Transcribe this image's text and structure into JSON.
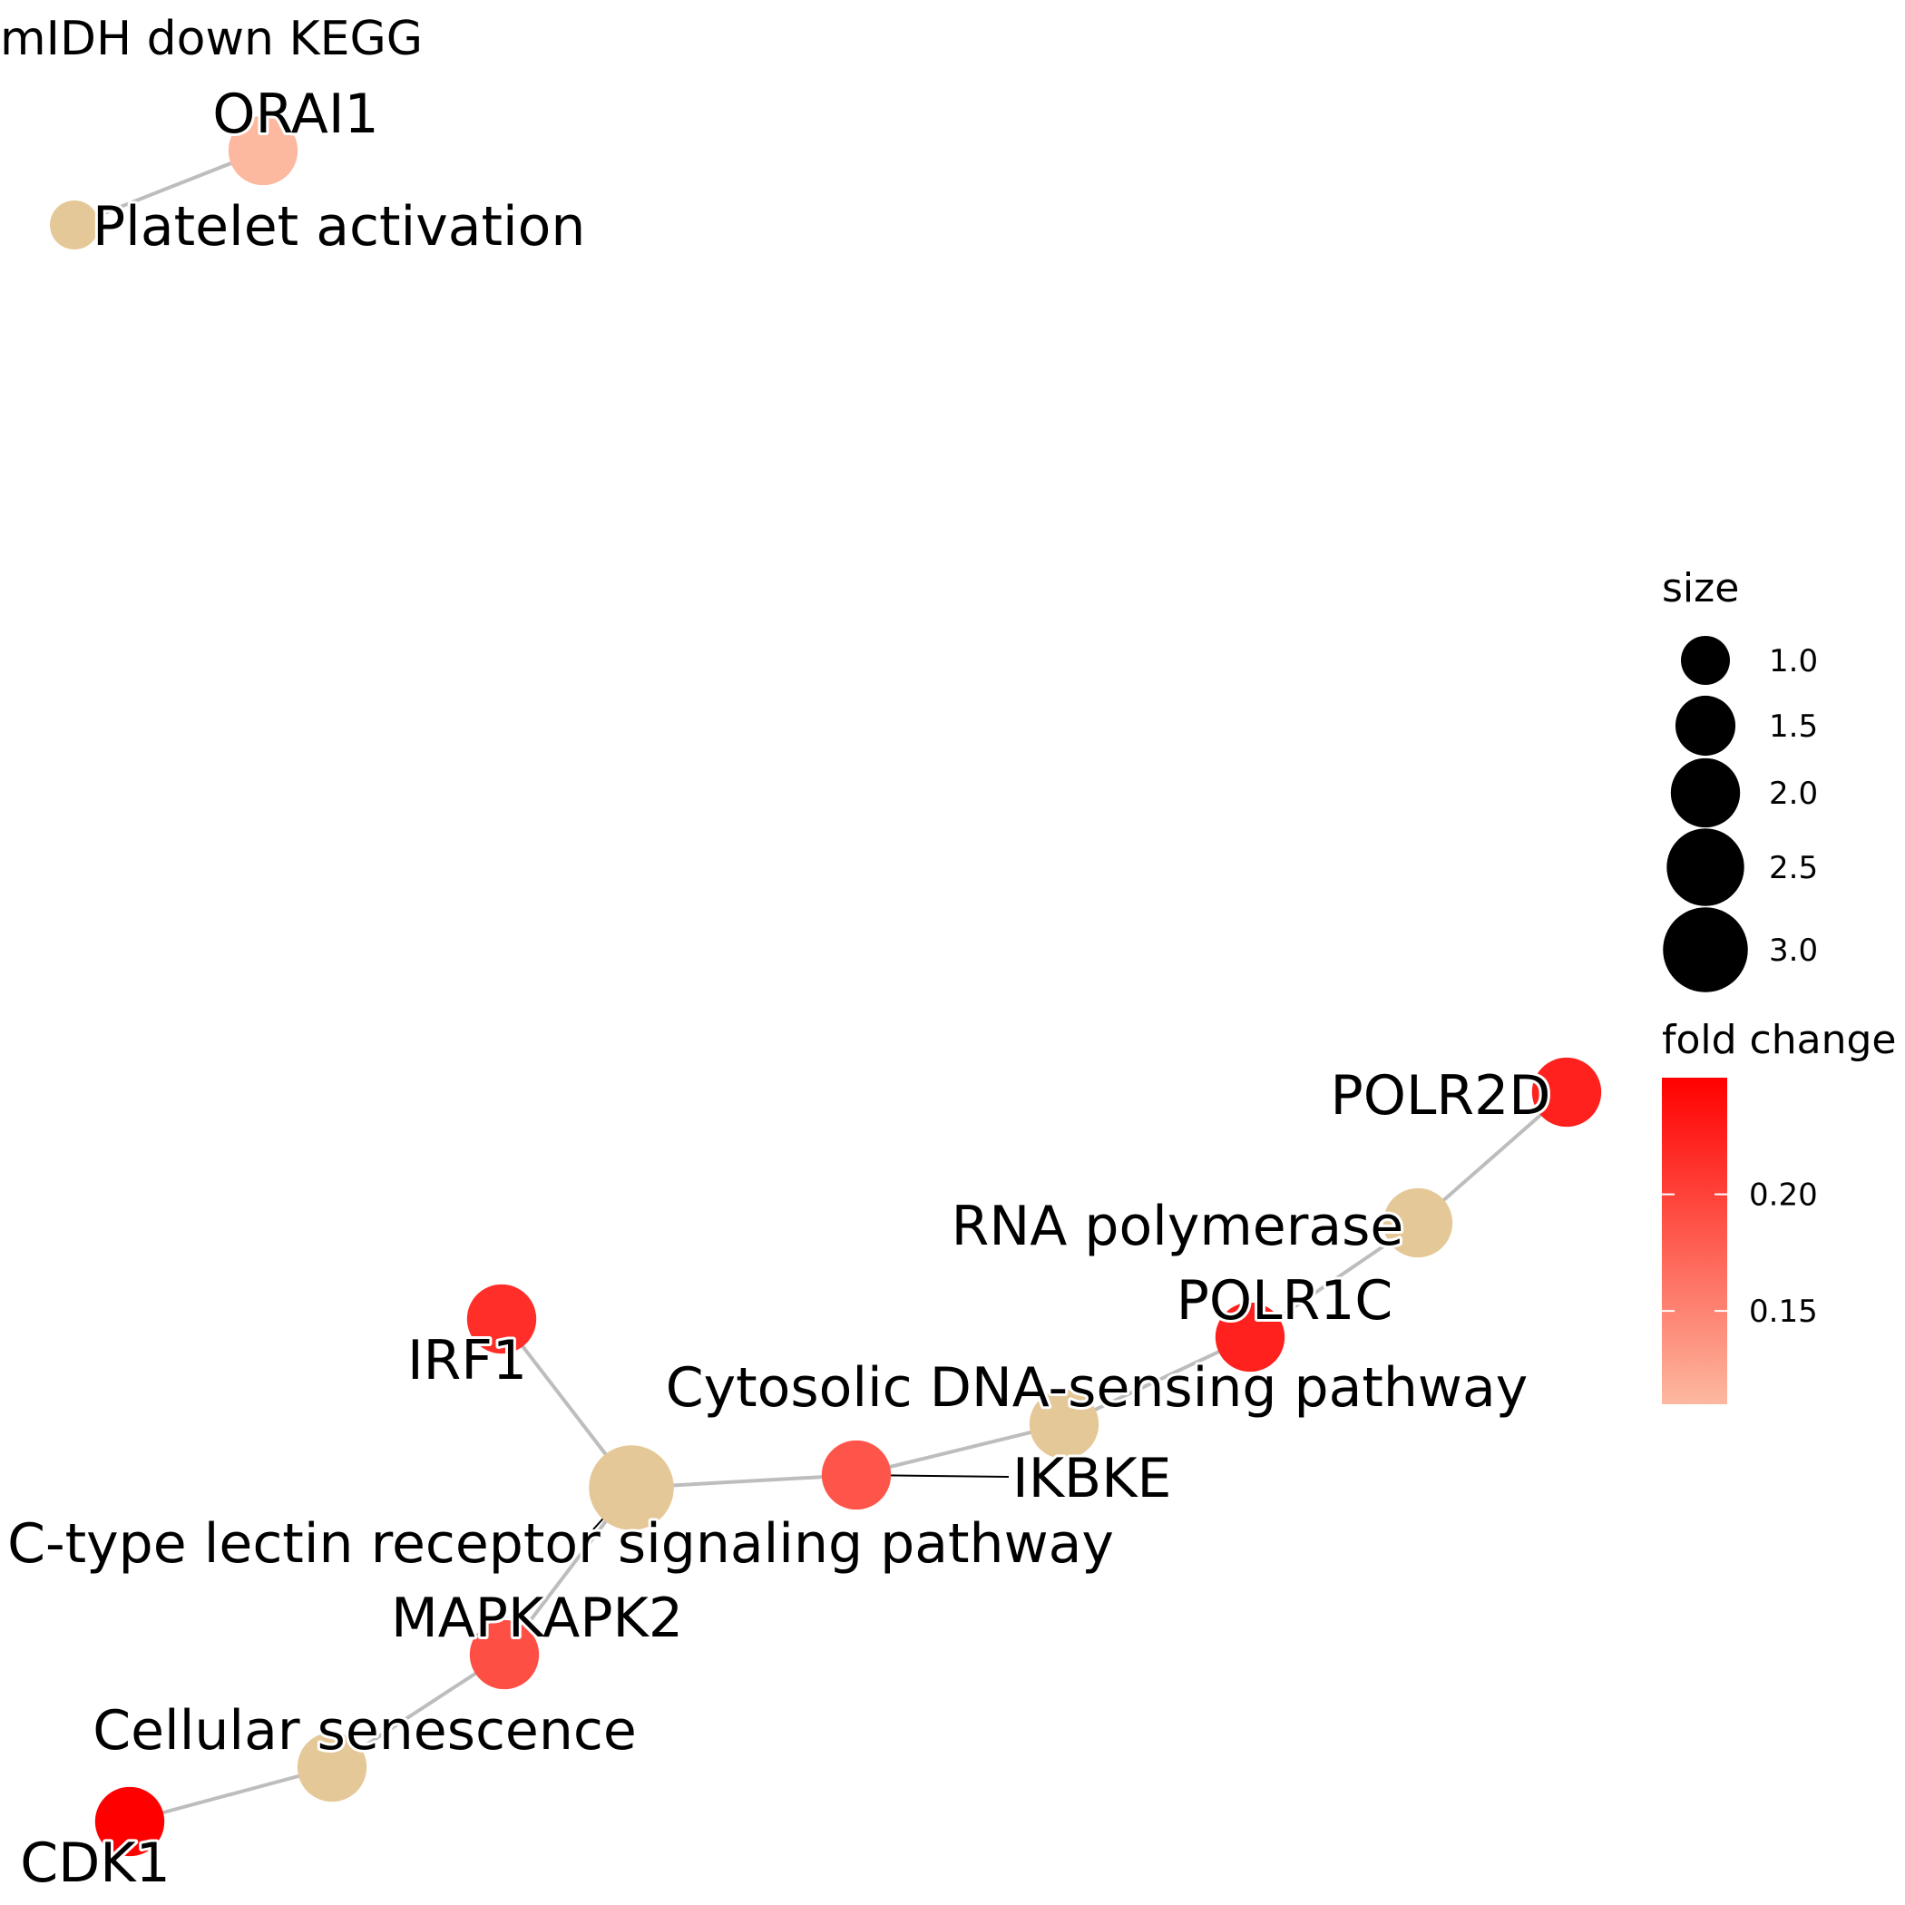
{
  "title": "mIDH down KEGG",
  "colors": {
    "pathway": "#e5c898",
    "edge": "#bdbdbd",
    "gradient_low": "#fdb8a0",
    "gradient_high": "#ff0000"
  },
  "nodes": [
    {
      "id": "ORAI1",
      "label": "ORAI1",
      "type": "gene",
      "fold_change": 0.11,
      "size": 2.0
    },
    {
      "id": "platelet",
      "label": "Platelet activation",
      "type": "pathway",
      "size": 1.0
    },
    {
      "id": "POLR2D",
      "label": "POLR2D",
      "type": "gene",
      "fold_change": 0.225,
      "size": 2.0
    },
    {
      "id": "rnapol",
      "label": "RNA polymerase",
      "type": "pathway",
      "size": 2.0
    },
    {
      "id": "POLR1C",
      "label": "POLR1C",
      "type": "gene",
      "fold_change": 0.225,
      "size": 2.0
    },
    {
      "id": "cytosolic",
      "label": "Cytosolic DNA-sensing pathway",
      "type": "pathway",
      "size": 2.0
    },
    {
      "id": "IRF1",
      "label": "IRF1",
      "type": "gene",
      "fold_change": 0.215,
      "size": 2.0
    },
    {
      "id": "IKBKE",
      "label": "IKBKE",
      "type": "gene",
      "fold_change": 0.185,
      "size": 2.0
    },
    {
      "id": "ctype",
      "label": "C-type lectin receptor signaling pathway",
      "type": "pathway",
      "size": 3.0
    },
    {
      "id": "MAPKAPK2",
      "label": "MAPKAPK2",
      "type": "gene",
      "fold_change": 0.19,
      "size": 2.0
    },
    {
      "id": "senescence",
      "label": "Cellular senescence",
      "type": "pathway",
      "size": 2.0
    },
    {
      "id": "CDK1",
      "label": "CDK1",
      "type": "gene",
      "fold_change": 0.25,
      "size": 2.0
    }
  ],
  "edges": [
    [
      "ORAI1",
      "platelet"
    ],
    [
      "POLR2D",
      "rnapol"
    ],
    [
      "rnapol",
      "POLR1C"
    ],
    [
      "POLR1C",
      "cytosolic"
    ],
    [
      "cytosolic",
      "IKBKE"
    ],
    [
      "IKBKE",
      "ctype"
    ],
    [
      "IRF1",
      "ctype"
    ],
    [
      "ctype",
      "MAPKAPK2"
    ],
    [
      "MAPKAPK2",
      "senescence"
    ],
    [
      "senescence",
      "CDK1"
    ]
  ],
  "legend": {
    "size": {
      "title": "size",
      "items": [
        {
          "value": 1.0,
          "label": "1.0"
        },
        {
          "value": 1.5,
          "label": "1.5"
        },
        {
          "value": 2.0,
          "label": "2.0"
        },
        {
          "value": 2.5,
          "label": "2.5"
        },
        {
          "value": 3.0,
          "label": "3.0"
        }
      ]
    },
    "fold_change": {
      "title": "fold change",
      "range": [
        0.11,
        0.25
      ],
      "ticks": [
        {
          "value": 0.2,
          "label": "0.20"
        },
        {
          "value": 0.15,
          "label": "0.15"
        }
      ]
    }
  }
}
